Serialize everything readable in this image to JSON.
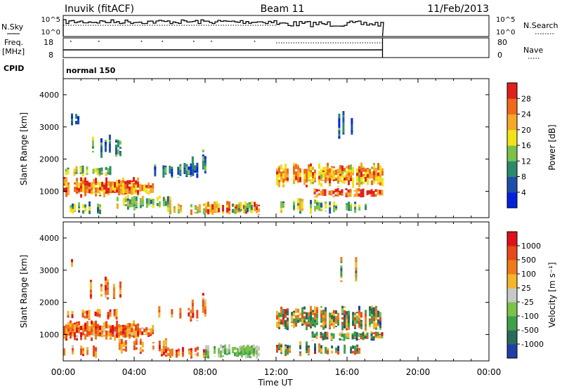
{
  "header": {
    "station": "Inuvik (fitACF)",
    "beam": "Beam 11",
    "date": "11/Feb/2013"
  },
  "status": {
    "nsky_label": "N.Sky",
    "nsky_ticks": [
      "10^5",
      "10^0"
    ],
    "nsearch_label": "N.Search",
    "nsearch_ticks": [
      "10^5",
      "10^0"
    ],
    "freq_label_line1": "Freq.",
    "freq_label_line2": "[MHz]",
    "freq_ticks": [
      "18",
      "8"
    ],
    "nave_label": "Nave",
    "nave_ticks": [
      "80",
      "0"
    ],
    "cpid_label": "CPID",
    "cpid_value": "normal 150"
  },
  "chart_data": [
    {
      "type": "heatmap",
      "name": "power",
      "ylabel": "Slant Range [km]",
      "yticks": [
        1000,
        2000,
        3000,
        4000
      ],
      "ylim": [
        180,
        4500
      ],
      "xticks": [
        "00:00",
        "04:00",
        "08:00",
        "12:00",
        "16:00",
        "20:00",
        "00:00"
      ],
      "xlim_hours": [
        0,
        24
      ],
      "data_end_hour": 18,
      "colorbar": {
        "label": "Power [dB]",
        "ticks": [
          "4",
          "8",
          "12",
          "16",
          "20",
          "24",
          "28"
        ],
        "colors": [
          "#0022dd",
          "#1e4fa8",
          "#2a8a6a",
          "#7ac24a",
          "#f2e21a",
          "#f5a82a",
          "#ef6a1a",
          "#e0201a"
        ]
      }
    },
    {
      "type": "heatmap",
      "name": "velocity",
      "ylabel": "Slant Range [km]",
      "yticks": [
        1000,
        2000,
        3000,
        4000
      ],
      "ylim": [
        180,
        4500
      ],
      "xticks": [
        "00:00",
        "04:00",
        "08:00",
        "12:00",
        "16:00",
        "20:00",
        "00:00"
      ],
      "xlabel": "Time UT",
      "xlim_hours": [
        0,
        24
      ],
      "data_end_hour": 18,
      "colorbar": {
        "label": "Velocity [m s⁻¹]",
        "ticks": [
          "1000",
          "500",
          "100",
          "25",
          "-25",
          "-100",
          "-500",
          "-1000"
        ],
        "colors": [
          "#1e3ea8",
          "#2a6a5a",
          "#3fa04a",
          "#7ac24a",
          "#c8c8c8",
          "#f5b52a",
          "#f07a1a",
          "#e84a1a",
          "#e0101a"
        ]
      }
    }
  ]
}
